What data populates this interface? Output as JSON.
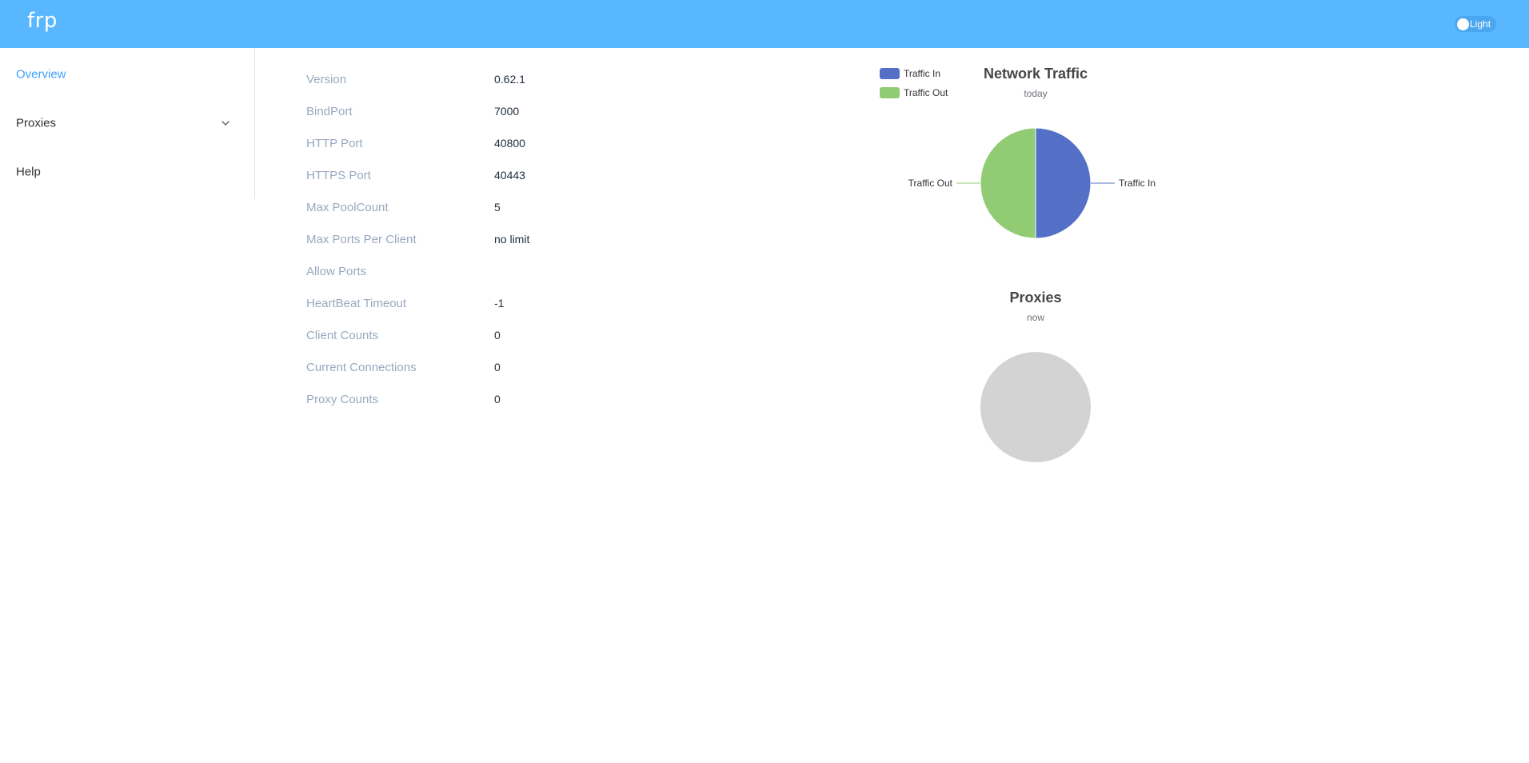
{
  "header": {
    "brand": "frp",
    "theme_label": "Light"
  },
  "sidebar": {
    "items": [
      {
        "label": "Overview",
        "active": true
      },
      {
        "label": "Proxies",
        "has_submenu": true
      },
      {
        "label": "Help"
      }
    ]
  },
  "server_info": [
    {
      "key": "Version",
      "value": "0.62.1"
    },
    {
      "key": "BindPort",
      "value": "7000"
    },
    {
      "key": "HTTP Port",
      "value": "40800"
    },
    {
      "key": "HTTPS Port",
      "value": "40443"
    },
    {
      "key": "Max PoolCount",
      "value": "5"
    },
    {
      "key": "Max Ports Per Client",
      "value": "no limit"
    },
    {
      "key": "Allow Ports",
      "value": ""
    },
    {
      "key": "HeartBeat Timeout",
      "value": "-1"
    },
    {
      "key": "Client Counts",
      "value": "0"
    },
    {
      "key": "Current Connections",
      "value": "0"
    },
    {
      "key": "Proxy Counts",
      "value": "0"
    }
  ],
  "chart_data": [
    {
      "type": "pie",
      "title": "Network Traffic",
      "subtitle": "today",
      "legend_position": "top-left",
      "slices": [
        {
          "name": "Traffic In",
          "value": 50,
          "color": "#5470c6"
        },
        {
          "name": "Traffic Out",
          "value": 50,
          "color": "#91cc75"
        }
      ]
    },
    {
      "type": "pie",
      "title": "Proxies",
      "subtitle": "now",
      "slices": [],
      "empty_color": "#d3d3d3"
    }
  ]
}
